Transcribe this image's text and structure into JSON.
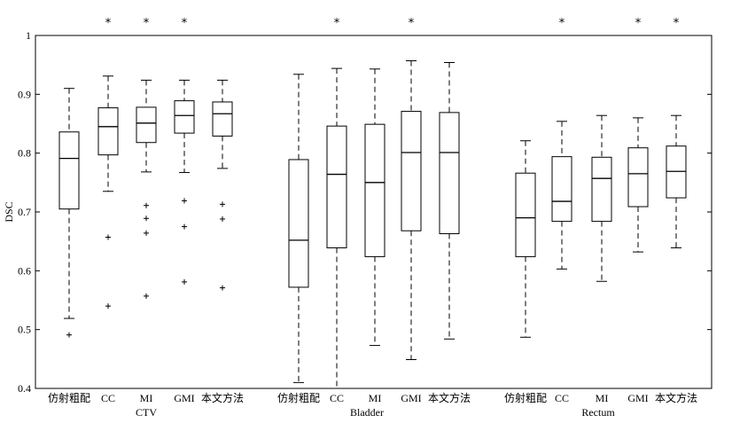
{
  "chart_data": {
    "type": "box",
    "ylabel": "DSC",
    "ylim": [
      0.4,
      1.0
    ],
    "yticks": [
      0.4,
      0.5,
      0.6,
      0.7,
      0.8,
      0.9,
      1.0
    ],
    "ytick_labels": [
      "0.4",
      "0.5",
      "0.6",
      "0.7",
      "0.8",
      "0.9",
      "1"
    ],
    "groups": [
      {
        "name": "CTV",
        "boxes": [
          {
            "label": "仿射粗配",
            "whisker_low": 0.519,
            "q1": 0.705,
            "median": 0.791,
            "q3": 0.836,
            "whisker_high": 0.91,
            "outliers": [
              0.491
            ],
            "star": false
          },
          {
            "label": "CC",
            "whisker_low": 0.735,
            "q1": 0.797,
            "median": 0.845,
            "q3": 0.877,
            "whisker_high": 0.931,
            "outliers": [
              0.657,
              0.54
            ],
            "star": true
          },
          {
            "label": "MI",
            "whisker_low": 0.768,
            "q1": 0.818,
            "median": 0.851,
            "q3": 0.878,
            "whisker_high": 0.924,
            "outliers": [
              0.711,
              0.689,
              0.664,
              0.557
            ],
            "star": true
          },
          {
            "label": "GMI",
            "whisker_low": 0.767,
            "q1": 0.834,
            "median": 0.864,
            "q3": 0.889,
            "whisker_high": 0.924,
            "outliers": [
              0.719,
              0.675,
              0.581
            ],
            "star": true
          },
          {
            "label": "本文方法",
            "whisker_low": 0.774,
            "q1": 0.829,
            "median": 0.867,
            "q3": 0.887,
            "whisker_high": 0.924,
            "outliers": [
              0.713,
              0.688,
              0.571
            ],
            "star": false
          }
        ]
      },
      {
        "name": "Bladder",
        "boxes": [
          {
            "label": "仿射粗配",
            "whisker_low": 0.41,
            "q1": 0.572,
            "median": 0.652,
            "q3": 0.789,
            "whisker_high": 0.934,
            "outliers": [],
            "star": false
          },
          {
            "label": "CC",
            "whisker_low": 0.4,
            "q1": 0.639,
            "median": 0.764,
            "q3": 0.846,
            "whisker_high": 0.944,
            "outliers": [],
            "star": true
          },
          {
            "label": "MI",
            "whisker_low": 0.473,
            "q1": 0.624,
            "median": 0.75,
            "q3": 0.849,
            "whisker_high": 0.943,
            "outliers": [],
            "star": false
          },
          {
            "label": "GMI",
            "whisker_low": 0.449,
            "q1": 0.668,
            "median": 0.801,
            "q3": 0.871,
            "whisker_high": 0.957,
            "outliers": [],
            "star": true
          },
          {
            "label": "本文方法",
            "whisker_low": 0.484,
            "q1": 0.663,
            "median": 0.801,
            "q3": 0.869,
            "whisker_high": 0.954,
            "outliers": [],
            "star": false
          }
        ]
      },
      {
        "name": "Rectum",
        "boxes": [
          {
            "label": "仿射粗配",
            "whisker_low": 0.487,
            "q1": 0.624,
            "median": 0.69,
            "q3": 0.766,
            "whisker_high": 0.821,
            "outliers": [],
            "star": false
          },
          {
            "label": "CC",
            "whisker_low": 0.603,
            "q1": 0.684,
            "median": 0.718,
            "q3": 0.794,
            "whisker_high": 0.854,
            "outliers": [],
            "star": true
          },
          {
            "label": "MI",
            "whisker_low": 0.582,
            "q1": 0.684,
            "median": 0.757,
            "q3": 0.793,
            "whisker_high": 0.864,
            "outliers": [],
            "star": false
          },
          {
            "label": "GMI",
            "whisker_low": 0.632,
            "q1": 0.709,
            "median": 0.765,
            "q3": 0.809,
            "whisker_high": 0.86,
            "outliers": [],
            "star": true
          },
          {
            "label": "本文方法",
            "whisker_low": 0.639,
            "q1": 0.724,
            "median": 0.769,
            "q3": 0.812,
            "whisker_high": 0.864,
            "outliers": [],
            "star": true
          }
        ]
      }
    ],
    "star_symbol": "*",
    "outlier_symbol": "+",
    "colors": {
      "box": "#000000",
      "median": "#000000",
      "whisker": "#000000",
      "background": "#ffffff"
    }
  }
}
